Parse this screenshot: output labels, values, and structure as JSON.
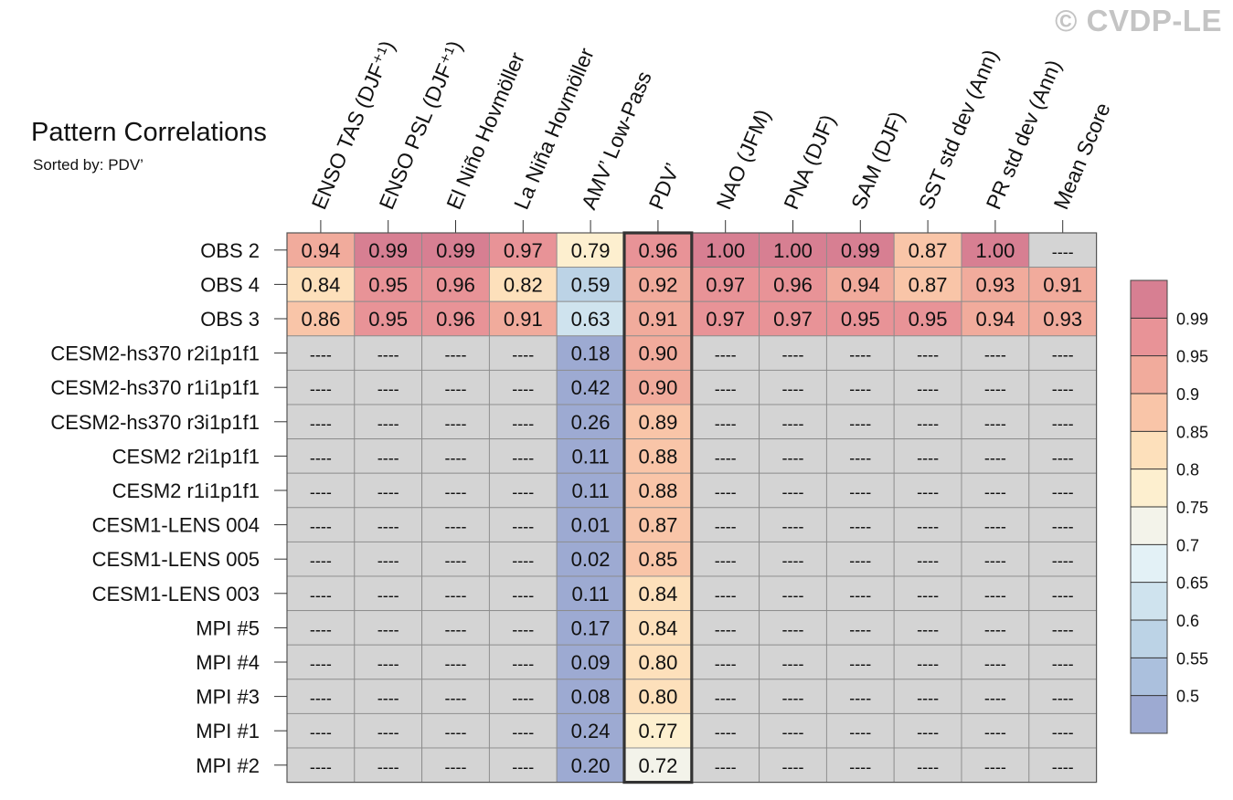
{
  "watermark": "© CVDP-LE",
  "title": "Pattern Correlations",
  "subtitle": "Sorted by: PDV’",
  "chart_data": {
    "type": "heatmap",
    "title": "Pattern Correlations",
    "subtitle": "Sorted by: PDV’",
    "sorted_by": "PDV’",
    "highlight_column": "PDV’",
    "columns": [
      "ENSO TAS (DJF⁺¹)",
      "ENSO PSL (DJF⁺¹)",
      "El Niño Hovmöller",
      "La Niña Hovmöller",
      "AMV’ Low-Pass",
      "PDV’",
      "NAO (JFM)",
      "PNA (DJF)",
      "SAM (DJF)",
      "SST std dev (Ann)",
      "PR std dev (Ann)",
      "Mean Score"
    ],
    "rows": [
      {
        "name": "OBS 2",
        "values": [
          0.94,
          0.99,
          0.99,
          0.97,
          0.79,
          0.96,
          1.0,
          1.0,
          0.99,
          0.87,
          1.0,
          null
        ]
      },
      {
        "name": "OBS 4",
        "values": [
          0.84,
          0.95,
          0.96,
          0.82,
          0.59,
          0.92,
          0.97,
          0.96,
          0.94,
          0.87,
          0.93,
          0.91
        ]
      },
      {
        "name": "OBS 3",
        "values": [
          0.86,
          0.95,
          0.96,
          0.91,
          0.63,
          0.91,
          0.97,
          0.97,
          0.95,
          0.95,
          0.94,
          0.93
        ]
      },
      {
        "name": "CESM2-hs370 r2i1p1f1",
        "values": [
          null,
          null,
          null,
          null,
          0.18,
          0.9,
          null,
          null,
          null,
          null,
          null,
          null
        ]
      },
      {
        "name": "CESM2-hs370 r1i1p1f1",
        "values": [
          null,
          null,
          null,
          null,
          0.42,
          0.9,
          null,
          null,
          null,
          null,
          null,
          null
        ]
      },
      {
        "name": "CESM2-hs370 r3i1p1f1",
        "values": [
          null,
          null,
          null,
          null,
          0.26,
          0.89,
          null,
          null,
          null,
          null,
          null,
          null
        ]
      },
      {
        "name": "CESM2 r2i1p1f1",
        "values": [
          null,
          null,
          null,
          null,
          0.11,
          0.88,
          null,
          null,
          null,
          null,
          null,
          null
        ]
      },
      {
        "name": "CESM2 r1i1p1f1",
        "values": [
          null,
          null,
          null,
          null,
          0.11,
          0.88,
          null,
          null,
          null,
          null,
          null,
          null
        ]
      },
      {
        "name": "CESM1-LENS 004",
        "values": [
          null,
          null,
          null,
          null,
          0.01,
          0.87,
          null,
          null,
          null,
          null,
          null,
          null
        ]
      },
      {
        "name": "CESM1-LENS 005",
        "values": [
          null,
          null,
          null,
          null,
          0.02,
          0.85,
          null,
          null,
          null,
          null,
          null,
          null
        ]
      },
      {
        "name": "CESM1-LENS 003",
        "values": [
          null,
          null,
          null,
          null,
          0.11,
          0.84,
          null,
          null,
          null,
          null,
          null,
          null
        ]
      },
      {
        "name": "MPI #5",
        "values": [
          null,
          null,
          null,
          null,
          0.17,
          0.84,
          null,
          null,
          null,
          null,
          null,
          null
        ]
      },
      {
        "name": "MPI #4",
        "values": [
          null,
          null,
          null,
          null,
          0.09,
          0.8,
          null,
          null,
          null,
          null,
          null,
          null
        ]
      },
      {
        "name": "MPI #3",
        "values": [
          null,
          null,
          null,
          null,
          0.08,
          0.8,
          null,
          null,
          null,
          null,
          null,
          null
        ]
      },
      {
        "name": "MPI #1",
        "values": [
          null,
          null,
          null,
          null,
          0.24,
          0.77,
          null,
          null,
          null,
          null,
          null,
          null
        ]
      },
      {
        "name": "MPI #2",
        "values": [
          null,
          null,
          null,
          null,
          0.2,
          0.72,
          null,
          null,
          null,
          null,
          null,
          null
        ]
      }
    ],
    "missing_label": "----",
    "missing_color": "#d4d4d4",
    "colorbar": {
      "levels": [
        0.5,
        0.55,
        0.6,
        0.65,
        0.7,
        0.75,
        0.8,
        0.85,
        0.9,
        0.95,
        0.99
      ],
      "tick_labels": [
        "0.5",
        "0.55",
        "0.6",
        "0.65",
        "0.7",
        "0.75",
        "0.8",
        "0.85",
        "0.9",
        "0.95",
        "0.99"
      ],
      "colors": [
        "#9daad2",
        "#abc0dd",
        "#bcd3e6",
        "#cfe3ee",
        "#e3f1f6",
        "#f3f3ea",
        "#fdefcf",
        "#fde0bb",
        "#f9c5a8",
        "#f1ab9c",
        "#e89397",
        "#d77f92"
      ]
    }
  }
}
